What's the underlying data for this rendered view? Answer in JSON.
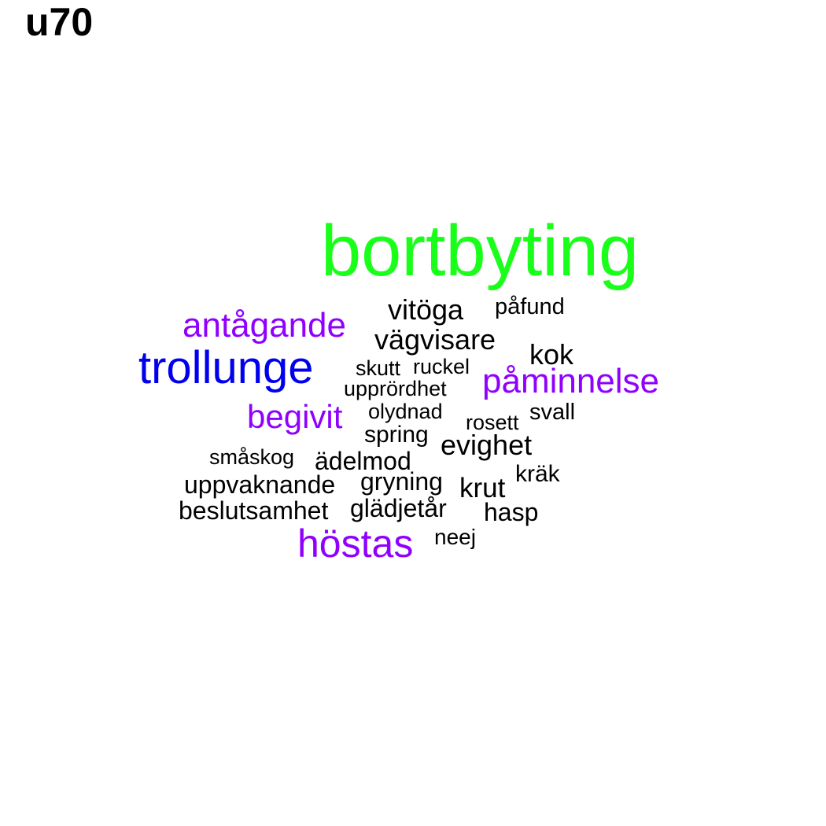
{
  "title": "u70",
  "colors": {
    "green": "#1aff1a",
    "blue": "#0000ee",
    "purple": "#8f00ff",
    "black": "#000000"
  },
  "words": [
    {
      "text": "bortbyting",
      "color": "#1aff1a"
    },
    {
      "text": "trollunge",
      "color": "#0000ee"
    },
    {
      "text": "antågande",
      "color": "#8f00ff"
    },
    {
      "text": "påminnelse",
      "color": "#8f00ff"
    },
    {
      "text": "begivit",
      "color": "#8f00ff"
    },
    {
      "text": "höstas",
      "color": "#8f00ff"
    },
    {
      "text": "vitöga",
      "color": "#000000"
    },
    {
      "text": "påfund",
      "color": "#000000"
    },
    {
      "text": "vägvisare",
      "color": "#000000"
    },
    {
      "text": "kok",
      "color": "#000000"
    },
    {
      "text": "skutt",
      "color": "#000000"
    },
    {
      "text": "ruckel",
      "color": "#000000"
    },
    {
      "text": "upprördhet",
      "color": "#000000"
    },
    {
      "text": "olydnad",
      "color": "#000000"
    },
    {
      "text": "rosett",
      "color": "#000000"
    },
    {
      "text": "svall",
      "color": "#000000"
    },
    {
      "text": "spring",
      "color": "#000000"
    },
    {
      "text": "evighet",
      "color": "#000000"
    },
    {
      "text": "småskog",
      "color": "#000000"
    },
    {
      "text": "ädelmod",
      "color": "#000000"
    },
    {
      "text": "kräk",
      "color": "#000000"
    },
    {
      "text": "uppvaknande",
      "color": "#000000"
    },
    {
      "text": "gryning",
      "color": "#000000"
    },
    {
      "text": "krut",
      "color": "#000000"
    },
    {
      "text": "beslutsamhet",
      "color": "#000000"
    },
    {
      "text": "glädjetår",
      "color": "#000000"
    },
    {
      "text": "hasp",
      "color": "#000000"
    },
    {
      "text": "neej",
      "color": "#000000"
    }
  ]
}
